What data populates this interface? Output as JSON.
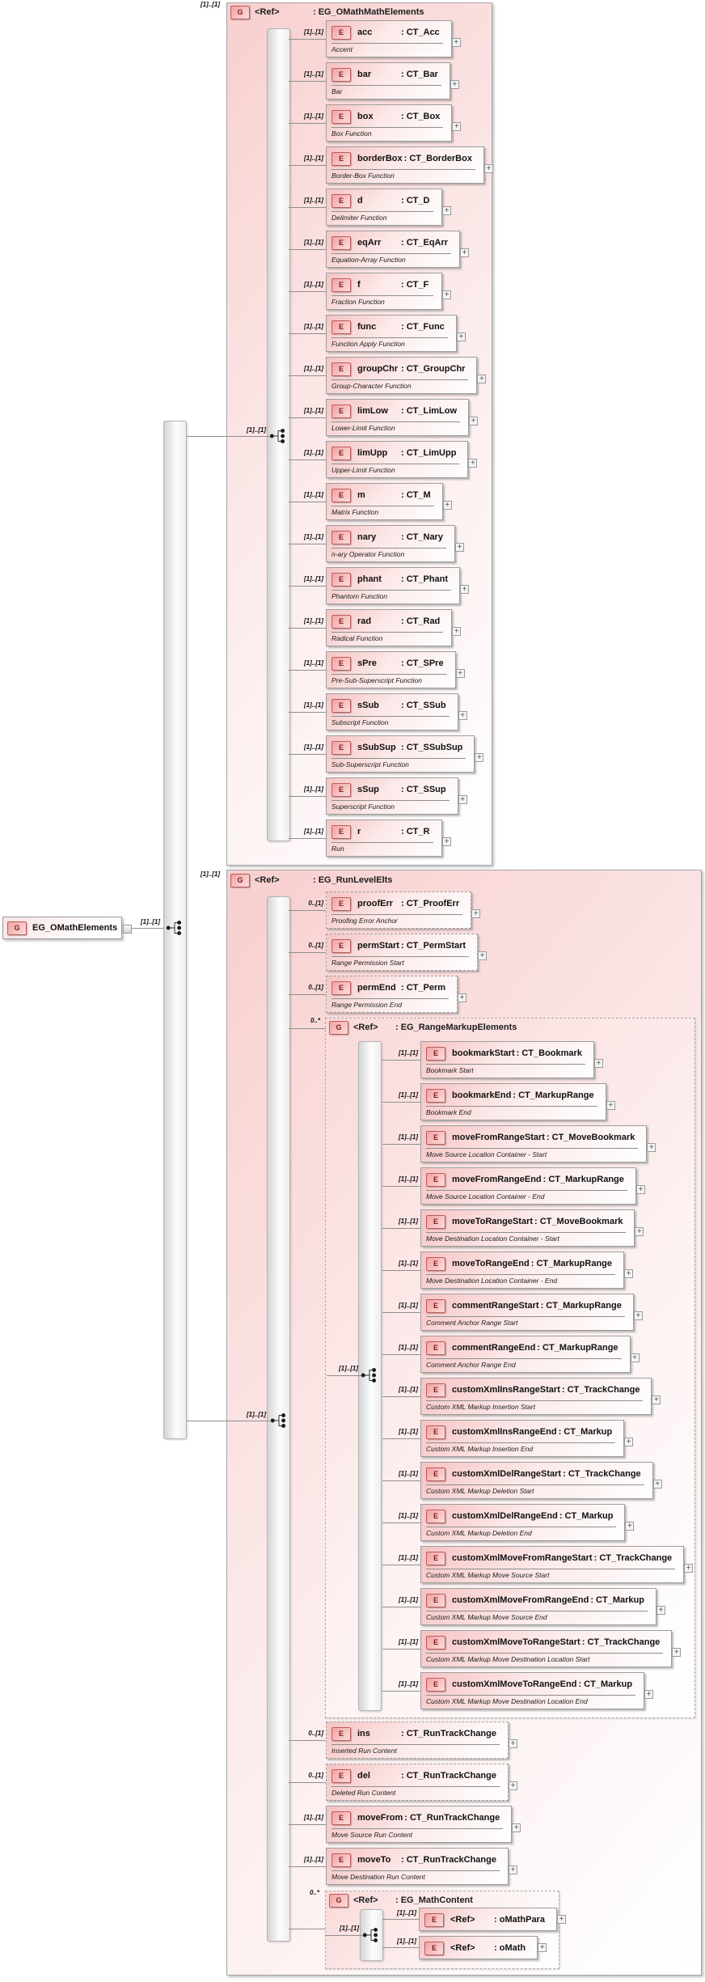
{
  "root": {
    "badge": "G",
    "label": "EG_OMathElements",
    "occurrence": "[1]..[1]"
  },
  "group_math": {
    "occurrence": "[1]..[1]",
    "badge": "G",
    "ref": "<Ref>",
    "title": ": EG_OMathMathElements",
    "compositor_occurrence": "[1]..[1]",
    "elements": [
      {
        "badge": "E",
        "name": "acc",
        "type": ": CT_Acc",
        "desc": "Accent",
        "occurrence": "[1]..[1]"
      },
      {
        "badge": "E",
        "name": "bar",
        "type": ": CT_Bar",
        "desc": "Bar",
        "occurrence": "[1]..[1]"
      },
      {
        "badge": "E",
        "name": "box",
        "type": ": CT_Box",
        "desc": "Box Function",
        "occurrence": "[1]..[1]"
      },
      {
        "badge": "E",
        "name": "borderBox",
        "type": ": CT_BorderBox",
        "desc": "Border-Box Function",
        "occurrence": "[1]..[1]"
      },
      {
        "badge": "E",
        "name": "d",
        "type": ": CT_D",
        "desc": "Delimiter Function",
        "occurrence": "[1]..[1]"
      },
      {
        "badge": "E",
        "name": "eqArr",
        "type": ": CT_EqArr",
        "desc": "Equation-Array Function",
        "occurrence": "[1]..[1]"
      },
      {
        "badge": "E",
        "name": "f",
        "type": ": CT_F",
        "desc": "Fraction Function",
        "occurrence": "[1]..[1]"
      },
      {
        "badge": "E",
        "name": "func",
        "type": ": CT_Func",
        "desc": "Function Apply Function",
        "occurrence": "[1]..[1]"
      },
      {
        "badge": "E",
        "name": "groupChr",
        "type": ": CT_GroupChr",
        "desc": "Group-Character Function",
        "occurrence": "[1]..[1]"
      },
      {
        "badge": "E",
        "name": "limLow",
        "type": ": CT_LimLow",
        "desc": "Lower-Limit Function",
        "occurrence": "[1]..[1]"
      },
      {
        "badge": "E",
        "name": "limUpp",
        "type": ": CT_LimUpp",
        "desc": "Upper-Limit Function",
        "occurrence": "[1]..[1]"
      },
      {
        "badge": "E",
        "name": "m",
        "type": ": CT_M",
        "desc": "Matrix Function",
        "occurrence": "[1]..[1]"
      },
      {
        "badge": "E",
        "name": "nary",
        "type": ": CT_Nary",
        "desc": "n-ary Operator Function",
        "occurrence": "[1]..[1]"
      },
      {
        "badge": "E",
        "name": "phant",
        "type": ": CT_Phant",
        "desc": "Phantom Function",
        "occurrence": "[1]..[1]"
      },
      {
        "badge": "E",
        "name": "rad",
        "type": ": CT_Rad",
        "desc": "Radical Function",
        "occurrence": "[1]..[1]"
      },
      {
        "badge": "E",
        "name": "sPre",
        "type": ": CT_SPre",
        "desc": "Pre-Sub-Superscript Function",
        "occurrence": "[1]..[1]"
      },
      {
        "badge": "E",
        "name": "sSub",
        "type": ": CT_SSub",
        "desc": "Subscript Function",
        "occurrence": "[1]..[1]"
      },
      {
        "badge": "E",
        "name": "sSubSup",
        "type": ": CT_SSubSup",
        "desc": "Sub-Superscript Function",
        "occurrence": "[1]..[1]"
      },
      {
        "badge": "E",
        "name": "sSup",
        "type": ": CT_SSup",
        "desc": "Superscript Function",
        "occurrence": "[1]..[1]"
      },
      {
        "badge": "E",
        "name": "r",
        "type": ": CT_R",
        "desc": "Run",
        "occurrence": "[1]..[1]"
      }
    ]
  },
  "group_run": {
    "occurrence": "[1]..[1]",
    "badge": "G",
    "ref": "<Ref>",
    "title": ": EG_RunLevelElts",
    "compositor_occurrence": "[1]..[1]",
    "pre_elements": [
      {
        "badge": "E",
        "name": "proofErr",
        "type": ": CT_ProofErr",
        "desc": "Proofing Error Anchor",
        "occurrence": "0..[1]"
      },
      {
        "badge": "E",
        "name": "permStart",
        "type": ": CT_PermStart",
        "desc": "Range Permission Start",
        "occurrence": "0..[1]"
      },
      {
        "badge": "E",
        "name": "permEnd",
        "type": ": CT_Perm",
        "desc": "Range Permission End",
        "occurrence": "0..[1]"
      }
    ],
    "range_markup": {
      "occurrence": "0..*",
      "badge": "G",
      "ref": "<Ref>",
      "title": ": EG_RangeMarkupElements",
      "compositor_occurrence": "[1]..[1]",
      "elements": [
        {
          "badge": "E",
          "name": "bookmarkStart",
          "type": ": CT_Bookmark",
          "desc": "Bookmark Start",
          "occurrence": "[1]..[1]"
        },
        {
          "badge": "E",
          "name": "bookmarkEnd",
          "type": ": CT_MarkupRange",
          "desc": "Bookmark End",
          "occurrence": "[1]..[1]"
        },
        {
          "badge": "E",
          "name": "moveFromRangeStart",
          "type": ": CT_MoveBookmark",
          "desc": "Move Source Location Container - Start",
          "occurrence": "[1]..[1]"
        },
        {
          "badge": "E",
          "name": "moveFromRangeEnd",
          "type": ": CT_MarkupRange",
          "desc": "Move Source Location Container - End",
          "occurrence": "[1]..[1]"
        },
        {
          "badge": "E",
          "name": "moveToRangeStart",
          "type": ": CT_MoveBookmark",
          "desc": "Move Destination Location Container - Start",
          "occurrence": "[1]..[1]"
        },
        {
          "badge": "E",
          "name": "moveToRangeEnd",
          "type": ": CT_MarkupRange",
          "desc": "Move Destination Location Container - End",
          "occurrence": "[1]..[1]"
        },
        {
          "badge": "E",
          "name": "commentRangeStart",
          "type": ": CT_MarkupRange",
          "desc": "Comment Anchor Range Start",
          "occurrence": "[1]..[1]"
        },
        {
          "badge": "E",
          "name": "commentRangeEnd",
          "type": ": CT_MarkupRange",
          "desc": "Comment Anchor Range End",
          "occurrence": "[1]..[1]"
        },
        {
          "badge": "E",
          "name": "customXmlInsRangeStart",
          "type": ": CT_TrackChange",
          "desc": "Custom XML Markup Insertion Start",
          "occurrence": "[1]..[1]"
        },
        {
          "badge": "E",
          "name": "customXmlInsRangeEnd",
          "type": ": CT_Markup",
          "desc": "Custom XML Markup Insertion End",
          "occurrence": "[1]..[1]"
        },
        {
          "badge": "E",
          "name": "customXmlDelRangeStart",
          "type": ": CT_TrackChange",
          "desc": "Custom XML Markup Deletion Start",
          "occurrence": "[1]..[1]"
        },
        {
          "badge": "E",
          "name": "customXmlDelRangeEnd",
          "type": ": CT_Markup",
          "desc": "Custom XML Markup Deletion End",
          "occurrence": "[1]..[1]"
        },
        {
          "badge": "E",
          "name": "customXmlMoveFromRangeStart",
          "type": ": CT_TrackChange",
          "desc": "Custom XML Markup Move Source Start",
          "occurrence": "[1]..[1]"
        },
        {
          "badge": "E",
          "name": "customXmlMoveFromRangeEnd",
          "type": ": CT_Markup",
          "desc": "Custom XML Markup Move Source End",
          "occurrence": "[1]..[1]"
        },
        {
          "badge": "E",
          "name": "customXmlMoveToRangeStart",
          "type": ": CT_TrackChange",
          "desc": "Custom XML Markup Move Destination Location Start",
          "occurrence": "[1]..[1]"
        },
        {
          "badge": "E",
          "name": "customXmlMoveToRangeEnd",
          "type": ": CT_Markup",
          "desc": "Custom XML Markup Move Destination Location End",
          "occurrence": "[1]..[1]"
        }
      ]
    },
    "post_elements": [
      {
        "badge": "E",
        "name": "ins",
        "type": ": CT_RunTrackChange",
        "desc": "Inserted Run Content",
        "occurrence": "0..[1]"
      },
      {
        "badge": "E",
        "name": "del",
        "type": ": CT_RunTrackChange",
        "desc": "Deleted Run Content",
        "occurrence": "0..[1]"
      },
      {
        "badge": "E",
        "name": "moveFrom",
        "type": ": CT_RunTrackChange",
        "desc": "Move Source Run Content",
        "occurrence": "[1]..[1]"
      },
      {
        "badge": "E",
        "name": "moveTo",
        "type": ": CT_RunTrackChange",
        "desc": "Move Destination Run Content",
        "occurrence": "[1]..[1]"
      }
    ],
    "math_content": {
      "occurrence": "0..*",
      "badge": "G",
      "ref": "<Ref>",
      "title": ": EG_MathContent",
      "compositor_occurrence": "[1]..[1]",
      "refs": [
        {
          "badge": "E",
          "ref": "<Ref>",
          "type": ": oMathPara",
          "occurrence": "[1]..[1]"
        },
        {
          "badge": "E",
          "ref": "<Ref>",
          "type": ": oMath",
          "occurrence": "[1]..[1]"
        }
      ]
    }
  },
  "icons": {
    "expand": "+"
  }
}
